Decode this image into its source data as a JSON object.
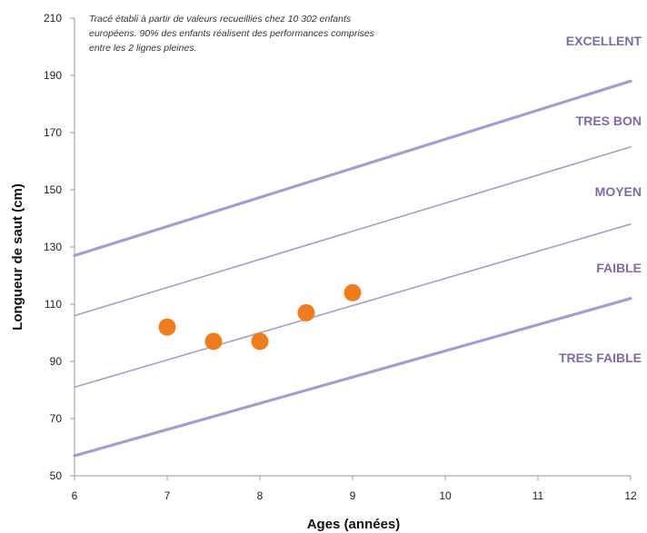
{
  "chart_data": {
    "type": "line",
    "xlabel": "Ages (années)",
    "ylabel": "Longueur de saut (cm)",
    "xlim": [
      6,
      12
    ],
    "ylim": [
      50,
      210
    ],
    "xticks": [
      "6",
      "7",
      "8",
      "9",
      "10",
      "11",
      "12"
    ],
    "yticks": [
      "50",
      "70",
      "90",
      "110",
      "130",
      "150",
      "170",
      "190",
      "210"
    ],
    "note": [
      "Tracé établi à partir de valeurs recueillies chez 10 302 enfants",
      "européens. 90% des enfants réalisent des performances comprises",
      "entre les 2 lignes pleines."
    ],
    "reference_lines": [
      {
        "x": [
          6,
          12
        ],
        "y": [
          127,
          188
        ],
        "weight": "thick"
      },
      {
        "x": [
          6,
          12
        ],
        "y": [
          106,
          165
        ],
        "weight": "thin"
      },
      {
        "x": [
          6,
          12
        ],
        "y": [
          81,
          138
        ],
        "weight": "thin"
      },
      {
        "x": [
          6,
          12
        ],
        "y": [
          57,
          112
        ],
        "weight": "thick"
      }
    ],
    "zones": [
      "EXCELLENT",
      "TRES BON",
      "MOYEN",
      "FAIBLE",
      "TRES FAIBLE"
    ],
    "points": {
      "x": [
        7,
        7.5,
        8,
        8.5,
        9
      ],
      "y": [
        102,
        97,
        97,
        107,
        114
      ]
    },
    "colors": {
      "line": "#a99bcf",
      "zone_text": "#7e6aa8",
      "point": "#f07c1c",
      "axis": "#9a9a9a"
    }
  }
}
